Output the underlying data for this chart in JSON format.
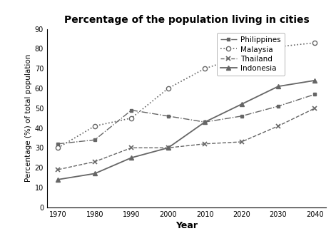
{
  "title": "Percentage of the population living in cities",
  "xlabel": "Year",
  "ylabel": "Percentage (%) of total population",
  "years": [
    1970,
    1980,
    1990,
    2000,
    2010,
    2020,
    2030,
    2040
  ],
  "philippines": [
    32,
    34,
    49,
    46,
    43,
    46,
    51,
    57
  ],
  "malaysia": [
    30,
    41,
    45,
    60,
    70,
    76,
    81,
    83
  ],
  "thailand": [
    19,
    23,
    30,
    30,
    32,
    33,
    41,
    50
  ],
  "indonesia": [
    14,
    17,
    25,
    30,
    43,
    52,
    61,
    64
  ],
  "ylim": [
    0,
    90
  ],
  "yticks": [
    0,
    10,
    20,
    30,
    40,
    50,
    60,
    70,
    80,
    90
  ],
  "color": "#666666",
  "background": "#ffffff"
}
